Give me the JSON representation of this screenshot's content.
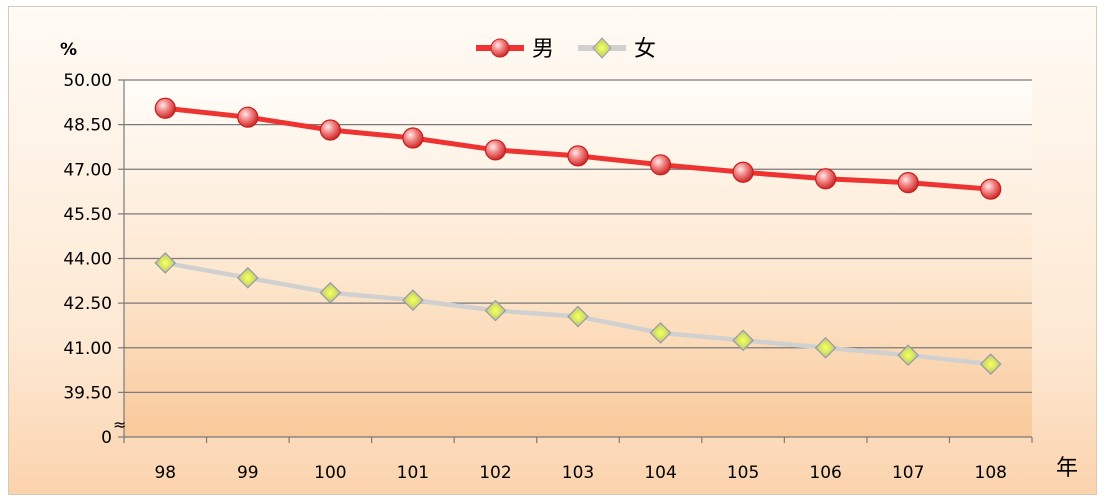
{
  "chart_data": {
    "type": "line",
    "y_unit_label": "%",
    "x_unit_label": "年",
    "categories": [
      "98",
      "99",
      "100",
      "101",
      "102",
      "103",
      "104",
      "105",
      "106",
      "107",
      "108"
    ],
    "y_ticks": [
      "0",
      "39.50",
      "41.00",
      "42.50",
      "44.00",
      "45.50",
      "47.00",
      "48.50",
      "50.00"
    ],
    "axis_break_symbol": "≈",
    "ylim": [
      38.0,
      50.0
    ],
    "axis_break": true,
    "grid": true,
    "legend_position": "top-center",
    "series": [
      {
        "name": "男",
        "color": "#ee3333",
        "marker": "circle",
        "values": [
          49.05,
          48.75,
          48.32,
          48.05,
          47.65,
          47.45,
          47.15,
          46.9,
          46.68,
          46.55,
          46.33
        ]
      },
      {
        "name": "女",
        "color": "#d0d0d0",
        "marker": "diamond",
        "values": [
          43.85,
          43.35,
          42.85,
          42.6,
          42.25,
          42.05,
          41.5,
          41.25,
          41.0,
          40.75,
          40.45
        ]
      }
    ]
  }
}
